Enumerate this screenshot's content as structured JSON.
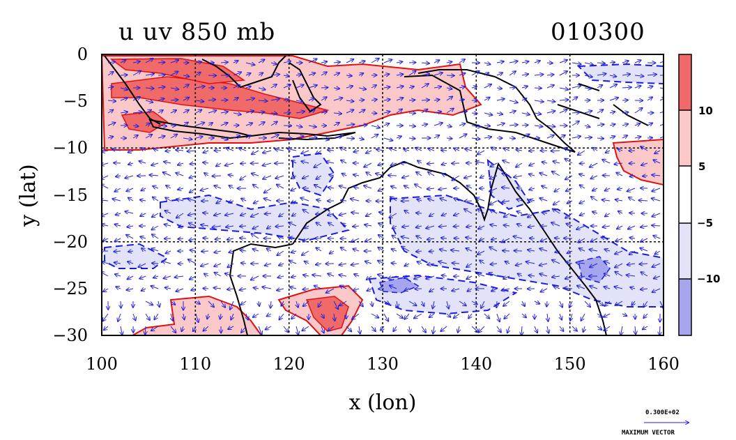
{
  "chart_data": {
    "type": "heatmap",
    "title": "u uv 850 mb",
    "title_right": "010300",
    "xlabel": "x (lon)",
    "ylabel": "y (lat)",
    "xlim": [
      100,
      160
    ],
    "ylim": [
      -30,
      0
    ],
    "x_ticks": [
      100,
      110,
      120,
      130,
      140,
      150,
      160
    ],
    "y_ticks": [
      0,
      -5,
      -10,
      -15,
      -20,
      -25,
      -30
    ],
    "grid": true,
    "overlay": "wind vectors (uv)",
    "colorbar": {
      "labels": [
        "10",
        "5",
        "−5",
        "−10"
      ],
      "colors": [
        "#f06a6a",
        "#fac8c8",
        "#ffffff",
        "#e2e2f8",
        "#a6a6ef"
      ]
    },
    "colors": {
      "positive_contour": "#e01010",
      "negative_contour": "#1a1ae6",
      "vectors": "#2222dd",
      "coastline": "#000000"
    },
    "vector_legend": {
      "value": "0.300E+02",
      "label": "MAXIMUM VECTOR"
    }
  }
}
